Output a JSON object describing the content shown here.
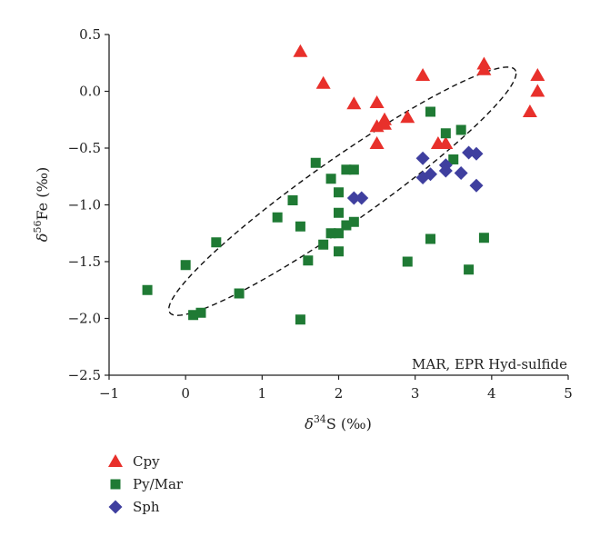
{
  "chart_data": {
    "type": "scatter",
    "title": "",
    "xlabel": "δ34S (‰)",
    "xlabel_parts": {
      "symbol": "δ",
      "superscript": "34",
      "element": "S (‰)"
    },
    "ylabel": "δ56Fe (‰)",
    "ylabel_parts": {
      "symbol": "δ",
      "superscript": "56",
      "element": "Fe (‰)"
    },
    "xlim": [
      -1,
      5
    ],
    "ylim": [
      -2.5,
      0.5
    ],
    "xticks": [
      -1,
      0,
      1,
      2,
      3,
      4,
      5
    ],
    "xtick_labels": [
      "−1",
      "0",
      "1",
      "2",
      "3",
      "4",
      "5"
    ],
    "yticks": [
      0.5,
      0.0,
      -0.5,
      -1.0,
      -1.5,
      -2.0,
      -2.5
    ],
    "ytick_labels": [
      "0.5",
      "0.0",
      "−0.5",
      "−1.0",
      "−1.5",
      "−2.0",
      "−2.5"
    ],
    "grid": false,
    "legend_position": "below-left",
    "annotation": "MAR, EPR Hyd-sulfide",
    "ellipse": {
      "style": "dashed",
      "center": [
        2.05,
        -0.88
      ],
      "semi_major": 2.5,
      "semi_minor": 0.31,
      "angle_deg": 25
    },
    "series": [
      {
        "name": "Cpy",
        "marker": "triangle",
        "color": "#e8302b",
        "points": [
          [
            1.5,
            0.35
          ],
          [
            1.8,
            0.07
          ],
          [
            2.2,
            -0.11
          ],
          [
            2.5,
            -0.1
          ],
          [
            2.5,
            -0.31
          ],
          [
            2.5,
            -0.46
          ],
          [
            2.6,
            -0.25
          ],
          [
            2.6,
            -0.29
          ],
          [
            2.9,
            -0.23
          ],
          [
            3.1,
            0.14
          ],
          [
            3.3,
            -0.46
          ],
          [
            3.4,
            -0.46
          ],
          [
            3.9,
            0.19
          ],
          [
            3.9,
            0.24
          ],
          [
            4.5,
            -0.18
          ],
          [
            4.6,
            0.14
          ],
          [
            4.6,
            0.0
          ]
        ]
      },
      {
        "name": "Py/Mar",
        "marker": "square",
        "color": "#1f7a34",
        "points": [
          [
            -0.5,
            -1.75
          ],
          [
            0.0,
            -1.53
          ],
          [
            0.1,
            -1.97
          ],
          [
            0.2,
            -1.95
          ],
          [
            0.4,
            -1.33
          ],
          [
            0.7,
            -1.78
          ],
          [
            1.2,
            -1.11
          ],
          [
            1.4,
            -0.96
          ],
          [
            1.5,
            -1.19
          ],
          [
            1.5,
            -2.01
          ],
          [
            1.6,
            -1.49
          ],
          [
            1.7,
            -0.63
          ],
          [
            1.8,
            -1.35
          ],
          [
            1.9,
            -0.77
          ],
          [
            1.9,
            -1.25
          ],
          [
            2.0,
            -0.89
          ],
          [
            2.0,
            -1.07
          ],
          [
            2.0,
            -1.25
          ],
          [
            2.0,
            -1.41
          ],
          [
            2.1,
            -0.69
          ],
          [
            2.1,
            -1.18
          ],
          [
            2.2,
            -0.69
          ],
          [
            2.2,
            -1.15
          ],
          [
            2.9,
            -1.5
          ],
          [
            3.2,
            -0.18
          ],
          [
            3.2,
            -1.3
          ],
          [
            3.4,
            -0.37
          ],
          [
            3.5,
            -0.6
          ],
          [
            3.6,
            -0.34
          ],
          [
            3.7,
            -1.57
          ],
          [
            3.9,
            -1.29
          ]
        ]
      },
      {
        "name": "Sph",
        "marker": "diamond",
        "color": "#3f3f9f",
        "points": [
          [
            2.2,
            -0.94
          ],
          [
            2.3,
            -0.94
          ],
          [
            3.1,
            -0.59
          ],
          [
            3.1,
            -0.76
          ],
          [
            3.2,
            -0.73
          ],
          [
            3.4,
            -0.65
          ],
          [
            3.4,
            -0.7
          ],
          [
            3.6,
            -0.72
          ],
          [
            3.7,
            -0.54
          ],
          [
            3.8,
            -0.55
          ],
          [
            3.8,
            -0.83
          ]
        ]
      }
    ]
  }
}
